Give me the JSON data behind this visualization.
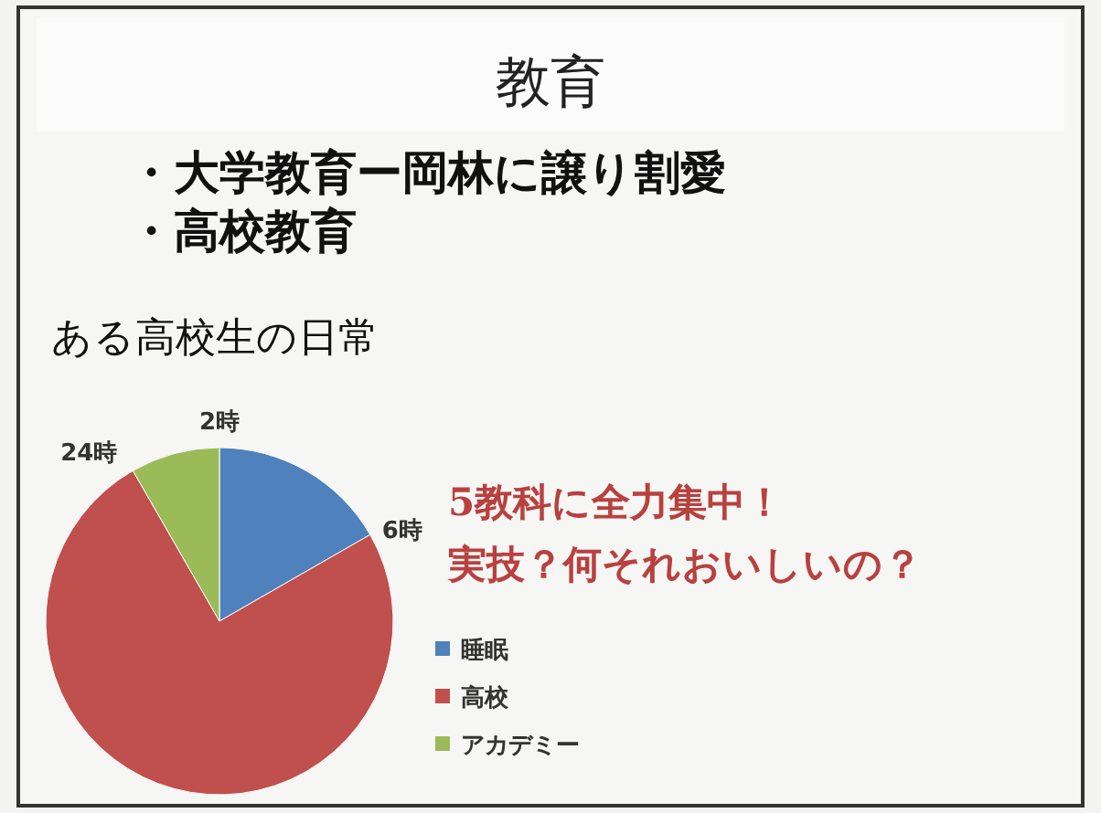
{
  "chart_data": {
    "type": "pie",
    "title": "教育",
    "subtitle": "ある高校生の日常",
    "categories": [
      "睡眠",
      "高校",
      "アカデミー"
    ],
    "values": [
      16.7,
      75,
      8.3
    ],
    "colors": [
      "#4f81bd",
      "#c0504d",
      "#9bbb59"
    ],
    "legend": "right",
    "annotations": [
      "2時",
      "6時",
      "24時",
      "・大学教育ー岡林に譲り割愛",
      "・高校教育",
      "5教科に全力集中！",
      "実技？何それおいしいの？"
    ]
  }
}
